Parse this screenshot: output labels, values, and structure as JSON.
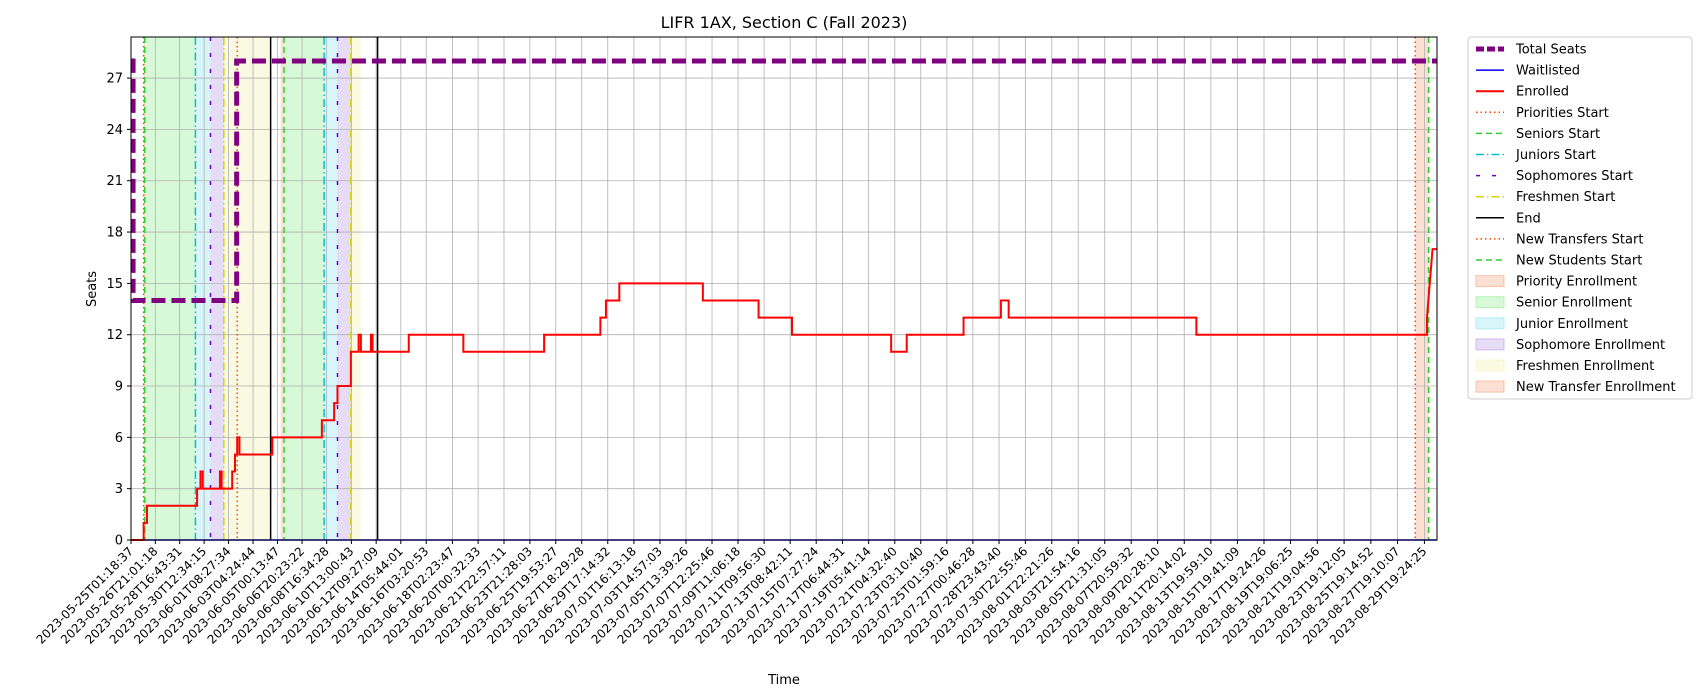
{
  "chart_data": {
    "type": "line",
    "title": "LIFR 1AX, Section C (Fall 2023)",
    "xlabel": "Time",
    "ylabel": "Seats",
    "ylim": [
      0,
      29.4
    ],
    "yticks": [
      0,
      3,
      6,
      9,
      12,
      15,
      18,
      21,
      24,
      27
    ],
    "grid": true,
    "legend_position": "outside-right",
    "x_range": [
      "2023-05-25T01:18:37",
      "2023-08-30T18:00:00"
    ],
    "xtick_labels": [
      "2023-05-25T01:18:37",
      "2023-05-26T21:01:18",
      "2023-05-28T16:43:31",
      "2023-05-30T12:34:15",
      "2023-06-01T08:27:34",
      "2023-06-03T04:24:44",
      "2023-06-05T00:13:47",
      "2023-06-06T20:23:22",
      "2023-06-08T16:34:28",
      "2023-06-10T13:00:43",
      "2023-06-12T09:27:09",
      "2023-06-14T05:44:01",
      "2023-06-16T03:20:53",
      "2023-06-18T02:23:47",
      "2023-06-20T00:32:33",
      "2023-06-21T22:57:11",
      "2023-06-23T21:28:03",
      "2023-06-25T19:53:27",
      "2023-06-27T18:29:28",
      "2023-06-29T17:14:32",
      "2023-07-01T16:13:18",
      "2023-07-03T14:57:03",
      "2023-07-05T13:39:26",
      "2023-07-07T12:25:46",
      "2023-07-09T11:06:18",
      "2023-07-11T09:56:30",
      "2023-07-13T08:42:11",
      "2023-07-15T07:27:24",
      "2023-07-17T06:44:31",
      "2023-07-19T05:41:14",
      "2023-07-21T04:32:40",
      "2023-07-23T03:10:40",
      "2023-07-25T01:59:16",
      "2023-07-27T00:46:28",
      "2023-07-28T23:43:40",
      "2023-07-30T22:55:46",
      "2023-08-01T22:21:26",
      "2023-08-03T21:54:16",
      "2023-08-05T21:31:05",
      "2023-08-07T20:59:32",
      "2023-08-09T20:28:10",
      "2023-08-11T20:14:02",
      "2023-08-13T19:59:10",
      "2023-08-15T19:41:09",
      "2023-08-17T19:24:26",
      "2023-08-19T19:06:25",
      "2023-08-21T19:04:56",
      "2023-08-23T19:12:05",
      "2023-08-25T19:14:52",
      "2023-08-27T19:10:07",
      "2023-08-29T19:24:25"
    ],
    "series": [
      {
        "name": "Total Seats",
        "color": "#800080",
        "style": "dashed-thick",
        "points": [
          [
            "2023-05-25T01:18:37",
            28
          ],
          [
            "2023-05-25T05:00:00",
            28
          ],
          [
            "2023-05-25T05:00:00",
            14
          ],
          [
            "2023-06-01T23:00:00",
            14
          ],
          [
            "2023-06-01T23:00:00",
            28
          ],
          [
            "2023-08-30T18:00:00",
            28
          ]
        ]
      },
      {
        "name": "Waitlisted",
        "color": "#0000ff",
        "style": "solid",
        "points": [
          [
            "2023-05-25T01:18:37",
            0
          ],
          [
            "2023-08-30T18:00:00",
            0
          ]
        ]
      },
      {
        "name": "Enrolled",
        "color": "#ff0000",
        "style": "solid-thick",
        "points": [
          [
            "2023-05-25T01:18:37",
            0
          ],
          [
            "2023-05-26T00:00:00",
            0
          ],
          [
            "2023-05-26T00:00:00",
            1
          ],
          [
            "2023-05-26T06:00:00",
            1
          ],
          [
            "2023-05-26T06:00:00",
            2
          ],
          [
            "2023-05-30T00:00:00",
            2
          ],
          [
            "2023-05-30T00:00:00",
            3
          ],
          [
            "2023-05-30T06:00:00",
            3
          ],
          [
            "2023-05-30T06:00:00",
            4
          ],
          [
            "2023-05-30T10:00:00",
            4
          ],
          [
            "2023-05-30T10:00:00",
            3
          ],
          [
            "2023-05-31T17:00:00",
            3
          ],
          [
            "2023-05-31T17:00:00",
            4
          ],
          [
            "2023-05-31T20:00:00",
            4
          ],
          [
            "2023-05-31T20:00:00",
            3
          ],
          [
            "2023-06-01T15:00:00",
            3
          ],
          [
            "2023-06-01T15:00:00",
            4
          ],
          [
            "2023-06-01T20:00:00",
            4
          ],
          [
            "2023-06-01T20:00:00",
            5
          ],
          [
            "2023-06-02T00:00:00",
            5
          ],
          [
            "2023-06-02T00:00:00",
            6
          ],
          [
            "2023-06-02T04:00:00",
            6
          ],
          [
            "2023-06-02T04:00:00",
            5
          ],
          [
            "2023-06-04T15:00:00",
            5
          ],
          [
            "2023-06-04T15:00:00",
            6
          ],
          [
            "2023-06-08T08:00:00",
            6
          ],
          [
            "2023-06-08T08:00:00",
            7
          ],
          [
            "2023-06-09T06:00:00",
            7
          ],
          [
            "2023-06-09T06:00:00",
            8
          ],
          [
            "2023-06-09T12:00:00",
            8
          ],
          [
            "2023-06-09T12:00:00",
            9
          ],
          [
            "2023-06-10T12:00:00",
            9
          ],
          [
            "2023-06-10T12:00:00",
            11
          ],
          [
            "2023-06-11T02:00:00",
            11
          ],
          [
            "2023-06-11T02:00:00",
            12
          ],
          [
            "2023-06-11T06:00:00",
            12
          ],
          [
            "2023-06-11T06:00:00",
            11
          ],
          [
            "2023-06-12T00:00:00",
            11
          ],
          [
            "2023-06-12T00:00:00",
            12
          ],
          [
            "2023-06-12T03:00:00",
            12
          ],
          [
            "2023-06-12T03:00:00",
            11
          ],
          [
            "2023-06-14T20:00:00",
            11
          ],
          [
            "2023-06-14T20:00:00",
            12
          ],
          [
            "2023-06-18T22:00:00",
            12
          ],
          [
            "2023-06-18T22:00:00",
            11
          ],
          [
            "2023-06-24T23:00:00",
            11
          ],
          [
            "2023-06-24T23:00:00",
            12
          ],
          [
            "2023-06-29T04:00:00",
            12
          ],
          [
            "2023-06-29T04:00:00",
            13
          ],
          [
            "2023-06-29T14:00:00",
            13
          ],
          [
            "2023-06-29T14:00:00",
            14
          ],
          [
            "2023-06-30T14:00:00",
            14
          ],
          [
            "2023-06-30T14:00:00",
            15
          ],
          [
            "2023-07-06T20:00:00",
            15
          ],
          [
            "2023-07-06T20:00:00",
            14
          ],
          [
            "2023-07-11T00:00:00",
            14
          ],
          [
            "2023-07-11T00:00:00",
            13
          ],
          [
            "2023-07-13T12:00:00",
            13
          ],
          [
            "2023-07-13T12:00:00",
            12
          ],
          [
            "2023-07-20T22:00:00",
            12
          ],
          [
            "2023-07-20T22:00:00",
            11
          ],
          [
            "2023-07-22T02:00:00",
            11
          ],
          [
            "2023-07-22T02:00:00",
            12
          ],
          [
            "2023-07-26T08:00:00",
            12
          ],
          [
            "2023-07-26T08:00:00",
            13
          ],
          [
            "2023-07-29T03:00:00",
            13
          ],
          [
            "2023-07-29T03:00:00",
            14
          ],
          [
            "2023-07-29T17:00:00",
            14
          ],
          [
            "2023-07-29T17:00:00",
            13
          ],
          [
            "2023-08-12T18:00:00",
            13
          ],
          [
            "2023-08-12T18:00:00",
            12
          ],
          [
            "2023-08-30T00:00:00",
            12
          ],
          [
            "2023-08-30T00:00:00",
            13
          ],
          [
            "2023-08-30T10:00:00",
            17
          ],
          [
            "2023-08-30T18:00:00",
            17
          ]
        ]
      }
    ],
    "markers": [
      {
        "name": "Priorities Start",
        "color": "#ff4500",
        "style": "dotted",
        "x": [
          "2023-05-26T00:00:00",
          "2023-06-02T00:00:00",
          "2023-08-29T03:00:00"
        ]
      },
      {
        "name": "Seniors Start",
        "color": "#32cd32",
        "style": "dashed",
        "x": [
          "2023-05-26T02:00:00",
          "2023-06-05T12:00:00",
          "2023-08-30T03:00:00"
        ]
      },
      {
        "name": "Juniors Start",
        "color": "#00bfd6",
        "style": "dashdot",
        "x": [
          "2023-05-29T21:00:00",
          "2023-06-08T12:00:00"
        ]
      },
      {
        "name": "Sophomores Start",
        "color": "#6600cc",
        "style": "sparse-dashed",
        "x": [
          "2023-05-31T00:00:00",
          "2023-06-09T12:00:00"
        ]
      },
      {
        "name": "Freshmen Start",
        "color": "#d4d400",
        "style": "dashdot",
        "x": [
          "2023-06-01T00:00:00",
          "2023-06-10T12:00:00"
        ]
      },
      {
        "name": "End",
        "color": "#000000",
        "style": "solid",
        "x": [
          "2023-06-04T12:00:00",
          "2023-06-12T12:00:00"
        ]
      },
      {
        "name": "New Transfers Start",
        "color": "#ff4500",
        "style": "dotted",
        "x": [
          "2023-08-29T03:00:00"
        ]
      },
      {
        "name": "New Students Start",
        "color": "#32cd32",
        "style": "dashed",
        "x": [
          "2023-08-30T03:00:00"
        ]
      }
    ],
    "regions": [
      {
        "name": "Priority Enrollment",
        "color": "#f4a582",
        "from": "2023-05-26T00:00:00",
        "to": "2023-05-26T02:00:00"
      },
      {
        "name": "Senior Enrollment",
        "color": "#90ee90",
        "from": "2023-05-26T02:00:00",
        "to": "2023-05-29T21:00:00"
      },
      {
        "name": "Junior Enrollment",
        "color": "#8ee5ee",
        "from": "2023-05-29T21:00:00",
        "to": "2023-05-31T00:00:00"
      },
      {
        "name": "Sophomore Enrollment",
        "color": "#b99ae6",
        "from": "2023-05-31T00:00:00",
        "to": "2023-06-01T00:00:00"
      },
      {
        "name": "Freshmen Enrollment",
        "color": "#f2f2b0",
        "from": "2023-06-01T00:00:00",
        "to": "2023-06-04T12:00:00"
      },
      {
        "name": "Priority Enrollment",
        "color": "#f4a582",
        "from": "2023-06-05T06:00:00",
        "to": "2023-06-05T12:00:00"
      },
      {
        "name": "Senior Enrollment",
        "color": "#90ee90",
        "from": "2023-06-05T12:00:00",
        "to": "2023-06-08T12:00:00"
      },
      {
        "name": "Junior Enrollment",
        "color": "#8ee5ee",
        "from": "2023-06-08T12:00:00",
        "to": "2023-06-09T12:00:00"
      },
      {
        "name": "Sophomore Enrollment",
        "color": "#b99ae6",
        "from": "2023-06-09T12:00:00",
        "to": "2023-06-10T12:00:00"
      },
      {
        "name": "Freshmen Enrollment",
        "color": "#f2f2b0",
        "from": "2023-06-10T12:00:00",
        "to": "2023-06-11T06:00:00"
      },
      {
        "name": "New Transfer Enrollment",
        "color": "#f4a582",
        "from": "2023-08-29T03:00:00",
        "to": "2023-08-30T03:00:00"
      }
    ],
    "legend": [
      {
        "label": "Total Seats",
        "kind": "line",
        "color": "#800080",
        "style": "dashed-thick"
      },
      {
        "label": "Waitlisted",
        "kind": "line",
        "color": "#0000ff",
        "style": "solid"
      },
      {
        "label": "Enrolled",
        "kind": "line",
        "color": "#ff0000",
        "style": "solid-thick"
      },
      {
        "label": "Priorities Start",
        "kind": "line",
        "color": "#ff4500",
        "style": "dotted"
      },
      {
        "label": "Seniors Start",
        "kind": "line",
        "color": "#32cd32",
        "style": "dashed"
      },
      {
        "label": "Juniors Start",
        "kind": "line",
        "color": "#00bfd6",
        "style": "dashdot"
      },
      {
        "label": "Sophomores Start",
        "kind": "line",
        "color": "#6600cc",
        "style": "sparse-dashed"
      },
      {
        "label": "Freshmen Start",
        "kind": "line",
        "color": "#d4d400",
        "style": "dashdot"
      },
      {
        "label": "End",
        "kind": "line",
        "color": "#000000",
        "style": "solid"
      },
      {
        "label": "New Transfers Start",
        "kind": "line",
        "color": "#ff4500",
        "style": "dotted"
      },
      {
        "label": "New Students Start",
        "kind": "line",
        "color": "#32cd32",
        "style": "dashed"
      },
      {
        "label": "Priority Enrollment",
        "kind": "patch",
        "color": "#f4a582"
      },
      {
        "label": "Senior Enrollment",
        "kind": "patch",
        "color": "#90ee90"
      },
      {
        "label": "Junior Enrollment",
        "kind": "patch",
        "color": "#8ee5ee"
      },
      {
        "label": "Sophomore Enrollment",
        "kind": "patch",
        "color": "#b99ae6"
      },
      {
        "label": "Freshmen Enrollment",
        "kind": "patch",
        "color": "#f2f2b0"
      },
      {
        "label": "New Transfer Enrollment",
        "kind": "patch",
        "color": "#f4a582"
      }
    ]
  }
}
